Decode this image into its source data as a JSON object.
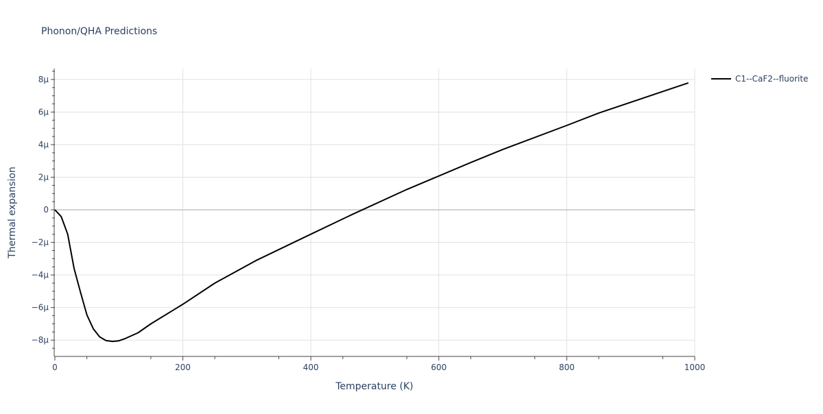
{
  "chart_data": {
    "type": "line",
    "title": "Phonon/QHA Predictions",
    "xlabel": "Temperature (K)",
    "ylabel": "Thermal expansion",
    "xlim": [
      0,
      1000
    ],
    "ylim": [
      -9e-06,
      8.67e-06
    ],
    "grid": true,
    "legend_placement": "top-right outside",
    "x_ticks": [
      0,
      200,
      400,
      600,
      800,
      1000
    ],
    "x_tick_labels": [
      "0",
      "200",
      "400",
      "600",
      "800",
      "1000"
    ],
    "y_ticks": [
      -8e-06,
      -6e-06,
      -4e-06,
      -2e-06,
      0,
      2e-06,
      4e-06,
      6e-06,
      8e-06
    ],
    "y_tick_labels": [
      "−8µ",
      "−6µ",
      "−4µ",
      "−2µ",
      "0",
      "2µ",
      "4µ",
      "6µ",
      "8µ"
    ],
    "series": [
      {
        "name": "C1--CaF2--fluorite",
        "color": "#000000",
        "x": [
          0,
          10,
          20,
          30,
          40,
          50,
          60,
          70,
          80,
          90,
          100,
          110,
          130,
          150,
          200,
          250,
          315,
          400,
          464,
          550,
          650,
          700,
          800,
          850,
          990
        ],
        "y": [
          0,
          -4.2e-07,
          -1.5e-06,
          -3.6e-06,
          -5.05e-06,
          -6.45e-06,
          -7.3e-06,
          -7.8e-06,
          -8.03e-06,
          -8.08e-06,
          -8.04e-06,
          -7.9e-06,
          -7.55e-06,
          -7e-06,
          -5.8e-06,
          -4.5e-06,
          -3.1e-06,
          -1.5e-06,
          -3e-07,
          1.25e-06,
          2.9e-06,
          3.7e-06,
          5.18e-06,
          5.94e-06,
          7.79e-06
        ]
      }
    ]
  }
}
